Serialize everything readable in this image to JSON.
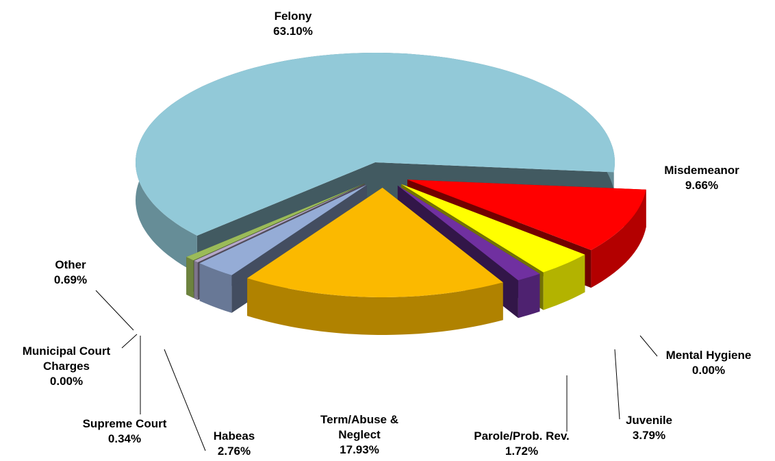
{
  "chart_data": {
    "type": "pie3d",
    "categories": [
      "Felony",
      "Misdemeanor",
      "Mental Hygiene",
      "Juvenile",
      "Parole/Prob. Rev.",
      "Term/Abuse & Neglect",
      "Habeas",
      "Supreme Court",
      "Municipal Court Charges",
      "Other"
    ],
    "values": [
      63.1,
      9.66,
      0,
      3.79,
      1.72,
      17.93,
      2.76,
      0.34,
      0,
      0.69
    ],
    "value_labels": [
      "63.10%",
      "9.66%",
      "0.00%",
      "3.79%",
      "1.72%",
      "17.93%",
      "2.76%",
      "0.34%",
      "0.00%",
      "0.69%"
    ],
    "colors": [
      "#92c9d8",
      "#ff0000",
      "#0b5a20",
      "#ffff00",
      "#7030a0",
      "#fbb900",
      "#95acd6",
      "#b4a7c8",
      "#7d7d7d",
      "#9bbb59"
    ]
  }
}
